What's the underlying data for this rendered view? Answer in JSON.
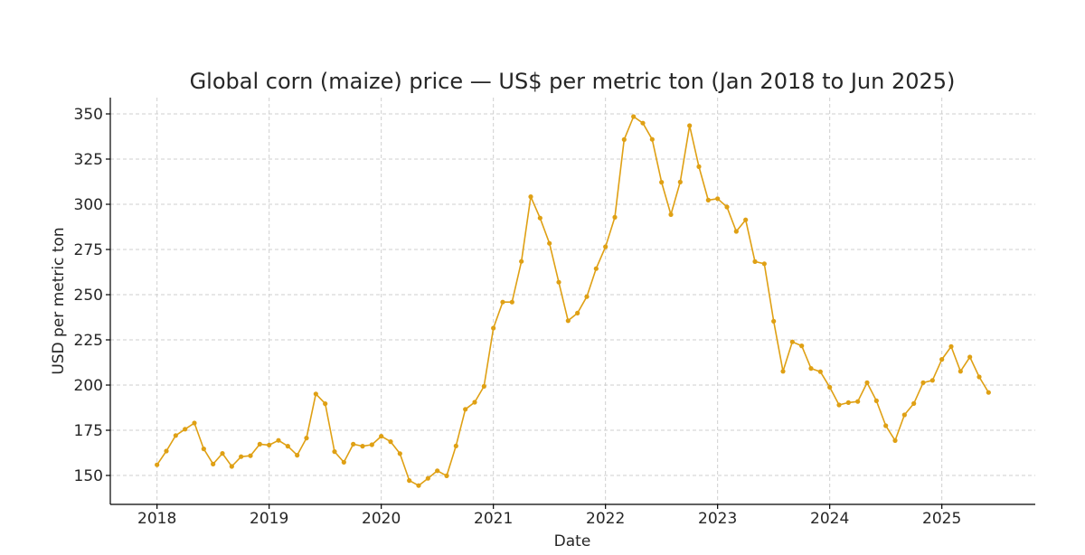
{
  "chart_data": {
    "type": "line",
    "title": "Global corn (maize) price — US$ per metric ton (Jan 2018 to Jun 2025)",
    "xlabel": "Date",
    "ylabel": "USD per metric ton",
    "xlim": [
      "2017-08",
      "2025-11"
    ],
    "ylim": [
      134,
      359
    ],
    "grid": true,
    "colors": {
      "line": "#dfa014",
      "grid": "#cfcfcf"
    },
    "x_ticks": [
      "2018",
      "2019",
      "2020",
      "2021",
      "2022",
      "2023",
      "2024",
      "2025"
    ],
    "y_ticks": [
      150,
      175,
      200,
      225,
      250,
      275,
      300,
      325,
      350
    ],
    "x_start": "2018-01",
    "series": [
      {
        "values": [
          155.9,
          163.5,
          172.1,
          175.6,
          179.0,
          164.7,
          156.3,
          162.2,
          155.0,
          160.4,
          160.9,
          167.3,
          166.8,
          169.4,
          166.2,
          161.2,
          170.7,
          195.1,
          189.7,
          163.2,
          157.3,
          167.3,
          166.2,
          167.0,
          171.7,
          168.7,
          162.1,
          147.2,
          144.4,
          148.4,
          152.6,
          149.8,
          166.3,
          186.6,
          190.5,
          199.3,
          231.5,
          245.9,
          245.9,
          268.4,
          304.2,
          292.4,
          278.4,
          256.9,
          235.6,
          239.8,
          248.9,
          264.4,
          276.5,
          292.8,
          335.8,
          348.5,
          344.9,
          335.9,
          312.2,
          294.3,
          312.3,
          343.5,
          320.8,
          302.3,
          303.1,
          298.5,
          285.0,
          291.4,
          268.3,
          267.1,
          235.3,
          207.6,
          223.9,
          221.7,
          209.2,
          207.4,
          198.8,
          189.0,
          190.3,
          190.9,
          201.3,
          191.3,
          177.5,
          169.3,
          183.5,
          189.8,
          201.3,
          202.6,
          214.2,
          221.3,
          207.6,
          215.5,
          204.5,
          195.9
        ]
      }
    ]
  }
}
